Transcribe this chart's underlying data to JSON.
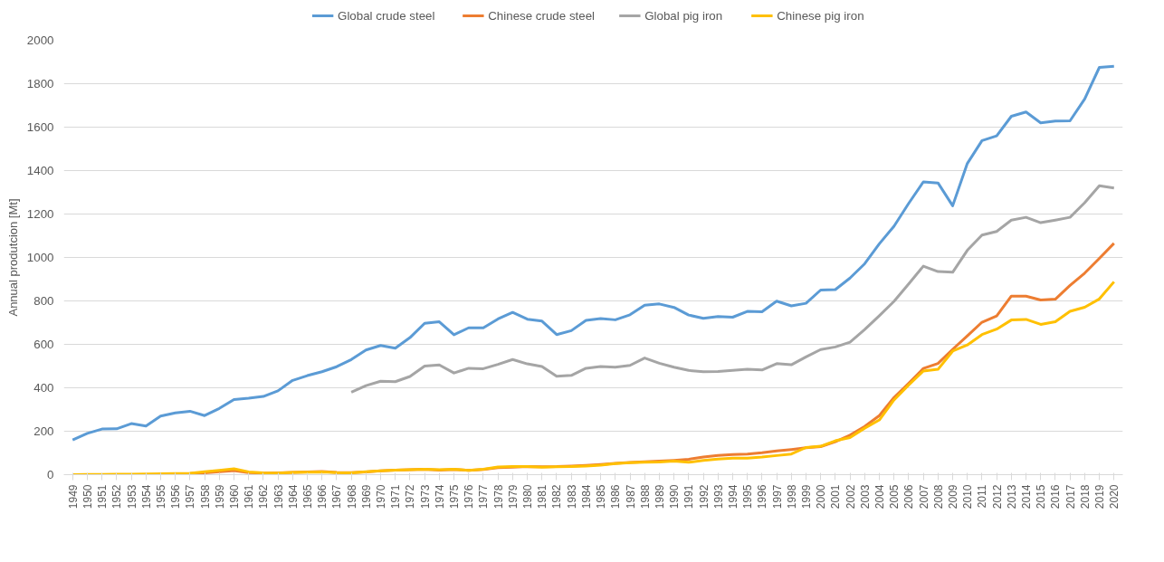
{
  "chart_data": {
    "type": "line",
    "ylabel": "Annual produtcion [Mt]",
    "categories": [
      "1949",
      "1950",
      "1951",
      "1952",
      "1953",
      "1954",
      "1955",
      "1956",
      "1957",
      "1958",
      "1959",
      "1960",
      "1961",
      "1962",
      "1963",
      "1964",
      "1965",
      "1966",
      "1967",
      "1968",
      "1969",
      "1970",
      "1971",
      "1972",
      "1973",
      "1974",
      "1975",
      "1976",
      "1977",
      "1978",
      "1979",
      "1980",
      "1981",
      "1982",
      "1983",
      "1984",
      "1985",
      "1986",
      "1987",
      "1988",
      "1989",
      "1990",
      "1991",
      "1992",
      "1993",
      "1994",
      "1995",
      "1996",
      "1997",
      "1998",
      "1999",
      "2000",
      "2001",
      "2002",
      "2003",
      "2004",
      "2005",
      "2006",
      "2007",
      "2008",
      "2009",
      "2010",
      "2011",
      "2012",
      "2013",
      "2014",
      "2015",
      "2016",
      "2017",
      "2018",
      "2019",
      "2020"
    ],
    "series": [
      {
        "name": "Global crude steel",
        "color": "#5b9bd5",
        "values": [
          160,
          190,
          210,
          211,
          235,
          224,
          270,
          284,
          292,
          272,
          305,
          346,
          352,
          360,
          386,
          434,
          456,
          474,
          497,
          530,
          574,
          595,
          582,
          631,
          697,
          704,
          644,
          676,
          676,
          717,
          747,
          716,
          707,
          645,
          663,
          710,
          719,
          713,
          736,
          780,
          786,
          770,
          735,
          720,
          728,
          725,
          752,
          750,
          799,
          777,
          789,
          850,
          852,
          905,
          971,
          1063,
          1144,
          1249,
          1348,
          1343,
          1238,
          1433,
          1538,
          1560,
          1650,
          1670,
          1620,
          1628,
          1629,
          1730,
          1875,
          1880
        ]
      },
      {
        "name": "Chinese crude steel",
        "color": "#ed7d31",
        "values": [
          null,
          null,
          null,
          null,
          null,
          null,
          null,
          4,
          5,
          8,
          14,
          19,
          9,
          7,
          8,
          10,
          12,
          15,
          10,
          9,
          13,
          18,
          21,
          23,
          25,
          21,
          24,
          20,
          24,
          32,
          34,
          37,
          36,
          37,
          40,
          43,
          47,
          52,
          56,
          59,
          62,
          66,
          71,
          81,
          89,
          93,
          95,
          101,
          109,
          116,
          124,
          129,
          152,
          182,
          222,
          272,
          355,
          421,
          489,
          512,
          577,
          639,
          702,
          731,
          822,
          822,
          804,
          808,
          871,
          928,
          996,
          1065
        ]
      },
      {
        "name": "Global pig iron",
        "color": "#a5a5a5",
        "values": [
          null,
          null,
          null,
          null,
          null,
          null,
          null,
          null,
          null,
          null,
          null,
          null,
          null,
          null,
          null,
          null,
          null,
          null,
          null,
          380,
          410,
          430,
          428,
          452,
          500,
          505,
          468,
          490,
          488,
          508,
          530,
          510,
          498,
          453,
          457,
          490,
          498,
          495,
          503,
          537,
          513,
          495,
          480,
          474,
          475,
          480,
          485,
          482,
          511,
          506,
          542,
          576,
          588,
          610,
          668,
          732,
          798,
          878,
          960,
          935,
          932,
          1033,
          1103,
          1120,
          1172,
          1185,
          1160,
          1172,
          1185,
          1252,
          1330,
          1320
        ]
      },
      {
        "name": "Chinese pig iron",
        "color": "#ffc000",
        "values": [
          0,
          1,
          1,
          2,
          2,
          3,
          4,
          5,
          6,
          14,
          20,
          27,
          13,
          8,
          7,
          10,
          11,
          13,
          9,
          8,
          14,
          18,
          21,
          23,
          25,
          23,
          25,
          20,
          25,
          35,
          37,
          38,
          34,
          36,
          37,
          40,
          44,
          51,
          55,
          57,
          58,
          62,
          57,
          66,
          72,
          76,
          76,
          81,
          88,
          95,
          125,
          131,
          156,
          171,
          214,
          252,
          344,
          413,
          477,
          485,
          569,
          597,
          645,
          670,
          712,
          715,
          692,
          704,
          752,
          771,
          809,
          888
        ]
      }
    ],
    "ylim": [
      0,
      2000
    ],
    "yticks": [
      0,
      200,
      400,
      600,
      800,
      1000,
      1200,
      1400,
      1600,
      1800,
      2000
    ],
    "grid": "y",
    "legend": "top",
    "marker": "none",
    "line_style": "solid"
  }
}
